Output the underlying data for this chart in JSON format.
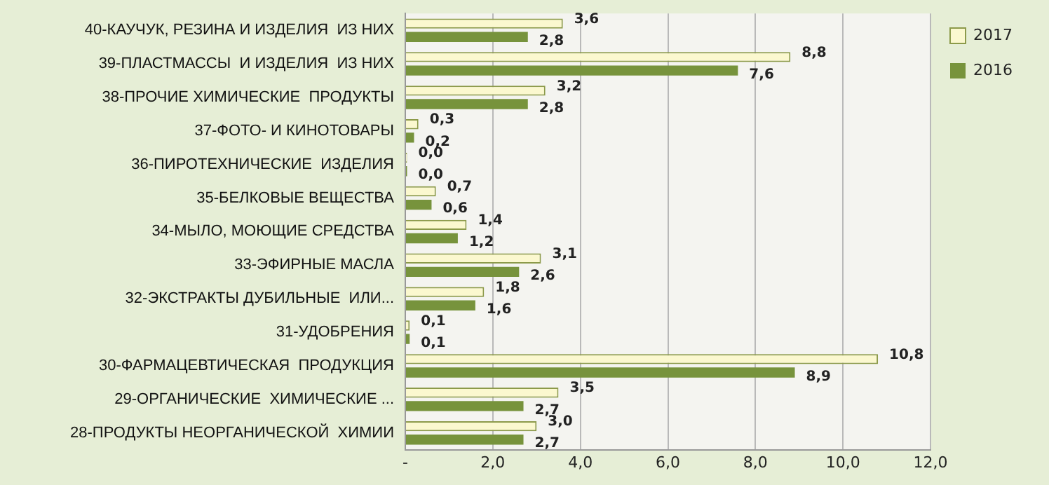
{
  "chart_data": {
    "type": "bar",
    "orientation": "horizontal",
    "categories": [
      "40-КАУЧУК, РЕЗИНА И ИЗДЕЛИЯ  ИЗ НИХ",
      "39-ПЛАСТМАССЫ  И ИЗДЕЛИЯ  ИЗ НИХ",
      "38-ПРОЧИЕ ХИМИЧЕСКИЕ  ПРОДУКТЫ",
      "37-ФОТО- И КИНОТОВАРЫ",
      "36-ПИРОТЕХНИЧЕСКИЕ  ИЗДЕЛИЯ",
      "35-БЕЛКОВЫЕ ВЕЩЕСТВА",
      "34-МЫЛО, МОЮЩИЕ СРЕДСТВА",
      "33-ЭФИРНЫЕ МАСЛА",
      "32-ЭКСТРАКТЫ ДУБИЛЬНЫЕ  ИЛИ...",
      "31-УДОБРЕНИЯ",
      "30-ФАРМАЦЕВТИЧЕСКАЯ  ПРОДУКЦИЯ",
      "29-ОРГАНИЧЕСКИЕ  ХИМИЧЕСКИЕ ...",
      "28-ПРОДУКТЫ НЕОРГАНИЧЕСКОЙ  ХИМИИ"
    ],
    "series": [
      {
        "name": "2017",
        "color": "#fbf8cf",
        "values": [
          3.6,
          8.8,
          3.2,
          0.3,
          0.04,
          0.7,
          1.4,
          3.1,
          1.8,
          0.1,
          10.8,
          3.5,
          3.0
        ],
        "value_labels": [
          "3,6",
          "8,8",
          "3,2",
          "0,3",
          "0,0",
          "0,7",
          "1,4",
          "3,1",
          "1,8",
          "0,1",
          "10,8",
          "3,5",
          "3,0"
        ]
      },
      {
        "name": "2016",
        "color": "#77933c",
        "values": [
          2.8,
          7.6,
          2.8,
          0.2,
          0.04,
          0.6,
          1.2,
          2.6,
          1.6,
          0.1,
          8.9,
          2.7,
          2.7
        ],
        "value_labels": [
          "2,8",
          "7,6",
          "2,8",
          "0,2",
          "0,0",
          "0,6",
          "1,2",
          "2,6",
          "1,6",
          "0,1",
          "8,9",
          "2,7",
          "2,7"
        ]
      }
    ],
    "xlim": [
      0,
      12
    ],
    "xticks": [
      {
        "value": 0,
        "label": "-"
      },
      {
        "value": 2,
        "label": "2,0"
      },
      {
        "value": 4,
        "label": "4,0"
      },
      {
        "value": 6,
        "label": "6,0"
      },
      {
        "value": 8,
        "label": "8,0"
      },
      {
        "value": 10,
        "label": "10,0"
      },
      {
        "value": 12,
        "label": "12,0"
      }
    ],
    "grid": "x",
    "legend": "top right"
  }
}
